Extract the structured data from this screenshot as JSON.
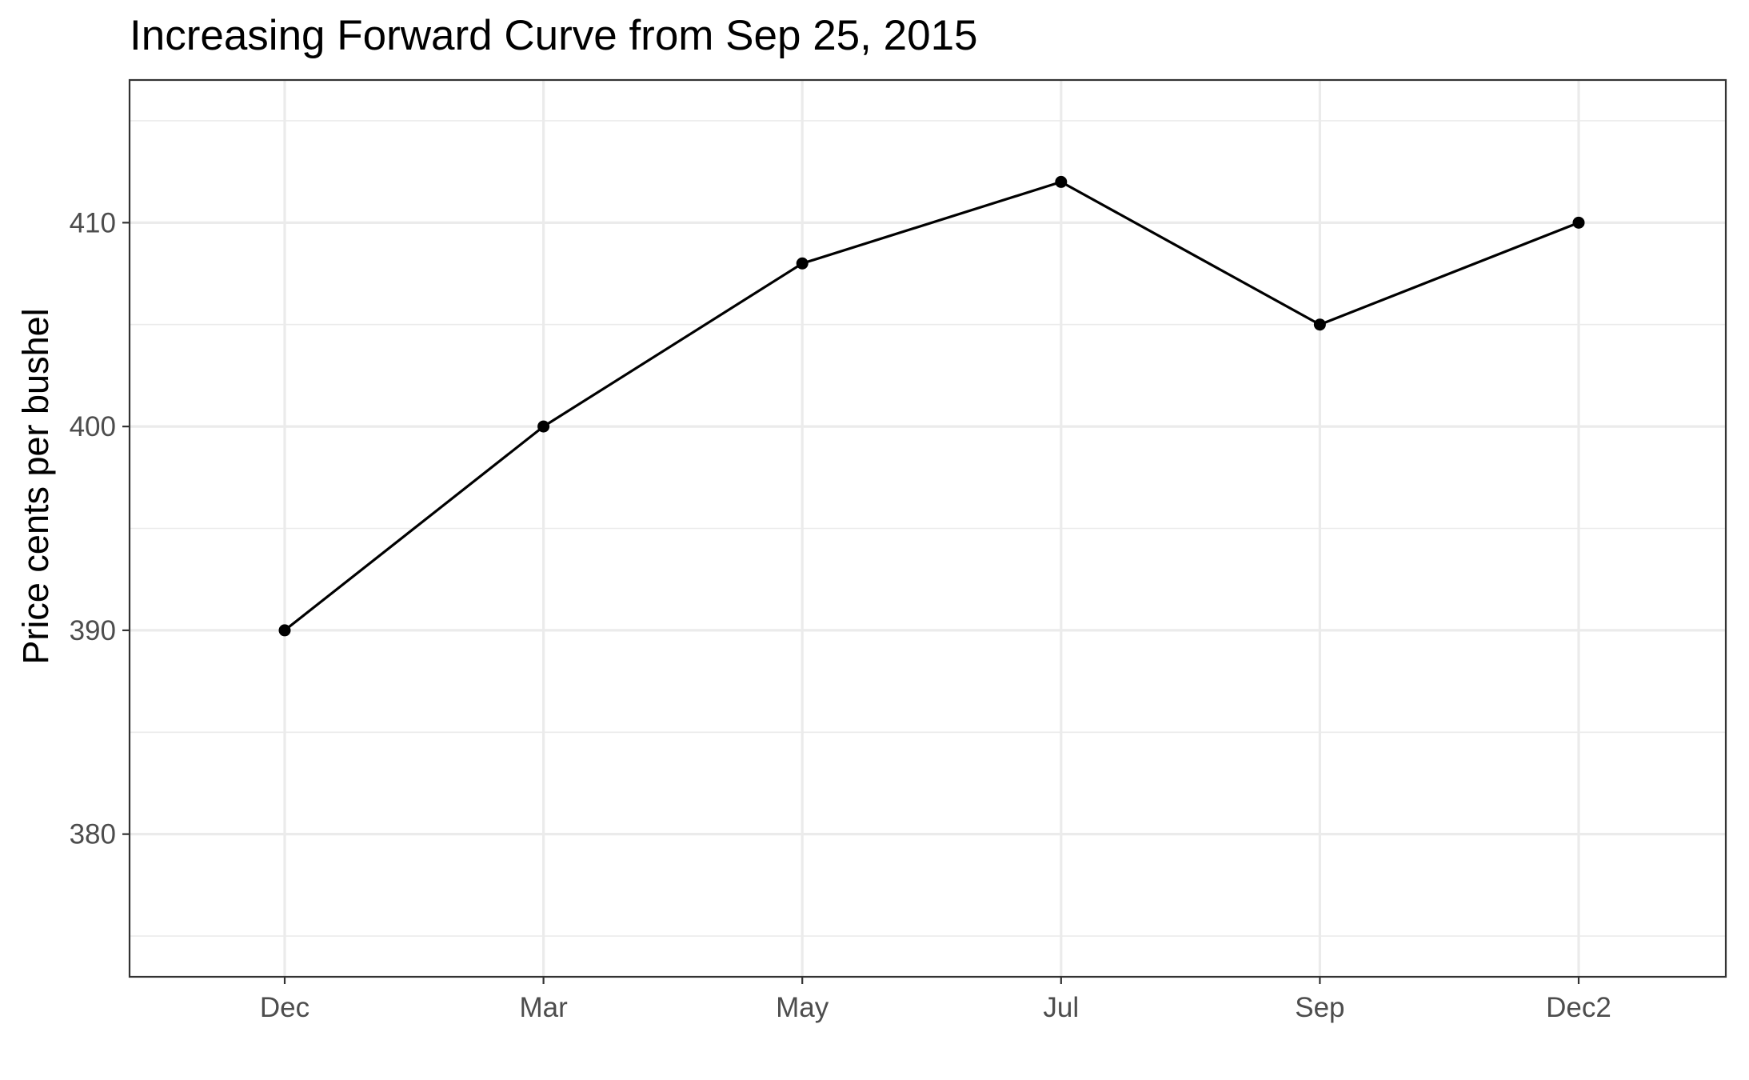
{
  "chart_data": {
    "type": "line",
    "title": "Increasing Forward Curve from Sep 25, 2015",
    "xlabel": "",
    "ylabel": "Price cents per bushel",
    "categories": [
      "Dec",
      "Mar",
      "May",
      "Jul",
      "Sep",
      "Dec2"
    ],
    "series": [
      {
        "values": [
          390,
          400,
          408,
          412,
          405,
          410
        ]
      }
    ],
    "ylim": [
      373,
      417
    ],
    "yticks": [
      380,
      390,
      400,
      410
    ],
    "grid": true,
    "legend": "none",
    "colors": {
      "line": "#000000",
      "point": "#000000",
      "grid": "#ebebeb",
      "panel_border": "#333333",
      "tick_text": "#4d4d4d"
    }
  }
}
